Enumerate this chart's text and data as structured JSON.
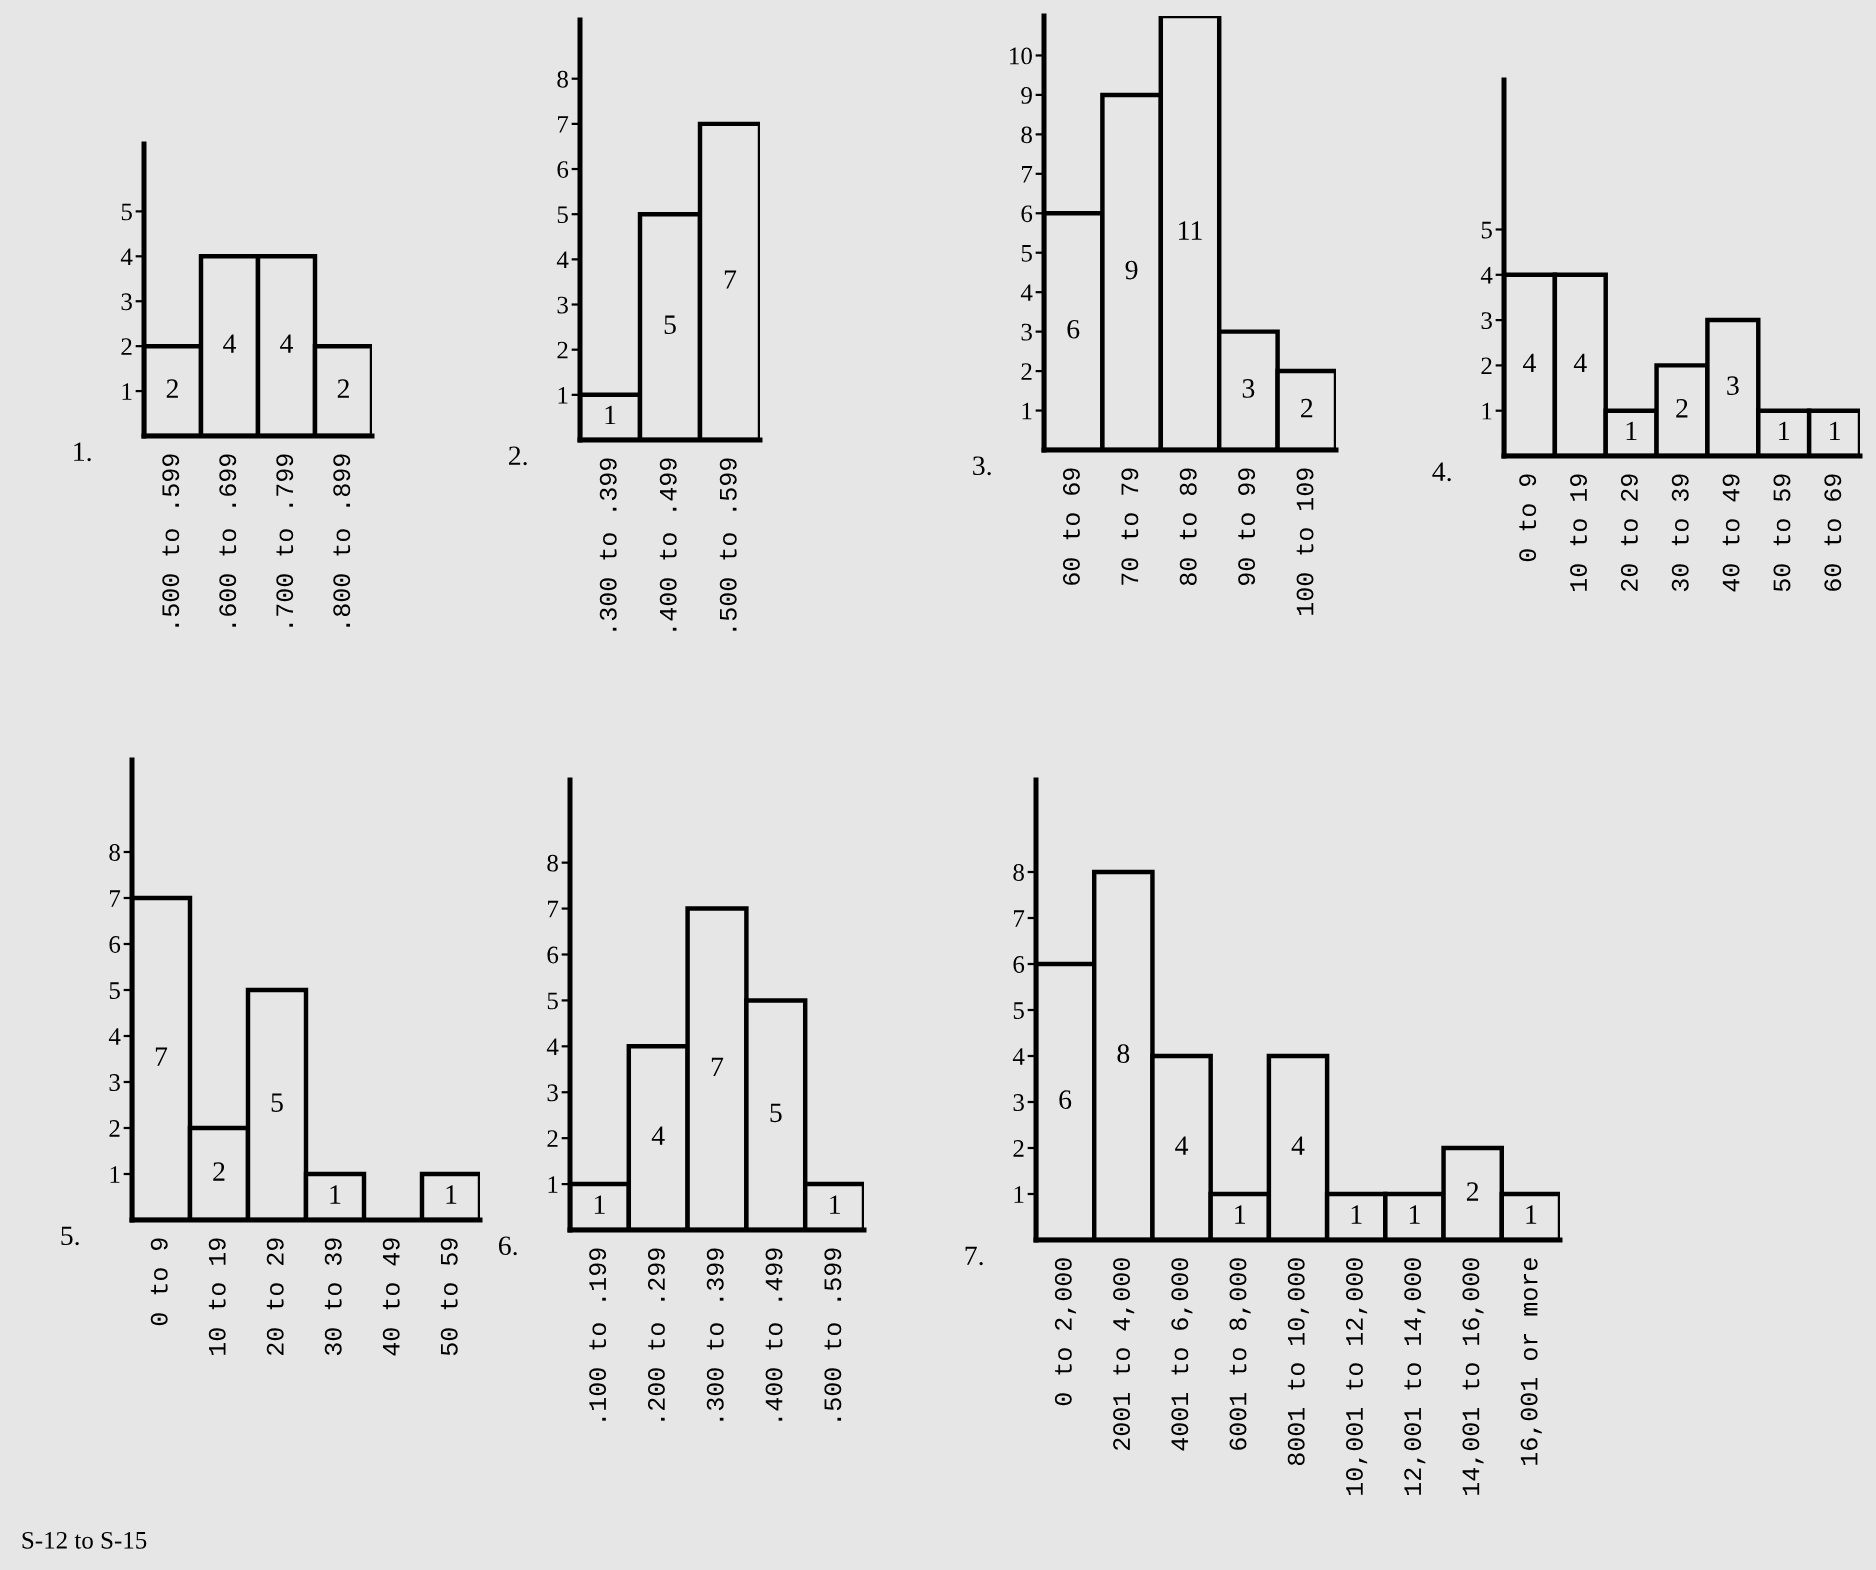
{
  "chart_data": [
    {
      "type": "bar",
      "title": "1.",
      "categories": [
        ".500 to .599",
        ".600 to .699",
        ".700 to .799",
        ".800 to .899"
      ],
      "values": [
        2,
        4,
        4,
        2
      ],
      "color": "#e6e6e6",
      "ylim": [
        0,
        6.5
      ],
      "yticks": [
        1,
        2,
        3,
        4,
        5
      ],
      "data_labels": true,
      "grid": false
    },
    {
      "type": "bar",
      "title": "2.",
      "categories": [
        ".300 to .399",
        ".400 to .499",
        ".500 to .599"
      ],
      "values": [
        1,
        5,
        7
      ],
      "color": "#e6e6e6",
      "ylim": [
        0,
        9.3
      ],
      "yticks": [
        1,
        2,
        3,
        4,
        5,
        6,
        7,
        8
      ],
      "data_labels": true,
      "grid": false
    },
    {
      "type": "bar",
      "title": "3.",
      "categories": [
        "60 to 69",
        "70 to 79",
        "80 to 89",
        "90 to 99",
        "100 to 109"
      ],
      "values": [
        6,
        9,
        11,
        3,
        2
      ],
      "color": "#e6e6e6",
      "ylim": [
        0,
        11
      ],
      "yticks": [
        1,
        2,
        3,
        4,
        5,
        6,
        7,
        8,
        9,
        10
      ],
      "data_labels": true,
      "grid": false
    },
    {
      "type": "bar",
      "title": "4.",
      "categories": [
        "0 to 9",
        "10 to 19",
        "20 to 29",
        "30 to 39",
        "40 to 49",
        "50 to 59",
        "60 to 69"
      ],
      "values": [
        4,
        4,
        1,
        2,
        3,
        1,
        1
      ],
      "color": "#e6e6e6",
      "ylim": [
        0,
        8.3
      ],
      "yticks": [
        1,
        2,
        3,
        4,
        5
      ],
      "data_labels": true,
      "grid": false
    },
    {
      "type": "bar",
      "title": "5.",
      "categories": [
        "0 to 9",
        "10 to 19",
        "20 to 29",
        "30 to 39",
        "40 to 49",
        "50 to 59"
      ],
      "values": [
        7,
        2,
        5,
        1,
        0,
        1
      ],
      "value_labels": [
        "7",
        "2",
        "5",
        "1",
        null,
        "1"
      ],
      "color": "#e6e6e6",
      "ylim": [
        0,
        10
      ],
      "yticks": [
        1,
        2,
        3,
        4,
        5,
        6,
        7,
        8
      ],
      "grid": false,
      "annotations": [
        "S-12 to S-15"
      ]
    },
    {
      "type": "bar",
      "title": "6.",
      "categories": [
        ".100 to .199",
        ".200 to .299",
        ".300 to .399",
        ".400 to .499",
        ".500 to .599"
      ],
      "values": [
        1,
        4,
        7,
        5,
        1
      ],
      "color": "#e6e6e6",
      "ylim": [
        0,
        9.8
      ],
      "yticks": [
        1,
        2,
        3,
        4,
        5,
        6,
        7,
        8
      ],
      "data_labels": true,
      "grid": false
    },
    {
      "type": "bar",
      "title": "7.",
      "categories": [
        "0 to 2,000",
        "2001 to 4,000",
        "4001 to 6,000",
        "6001 to 8,000",
        "8001 to 10,000",
        "10,001 to 12,000",
        "12,001 to 14,000",
        "14,001 to 16,000",
        "16,001 or more"
      ],
      "values": [
        6,
        8,
        4,
        1,
        4,
        1,
        1,
        2,
        1
      ],
      "color": "#e6e6e6",
      "ylim": [
        0,
        10
      ],
      "yticks": [
        1,
        2,
        3,
        4,
        5,
        6,
        7,
        8
      ],
      "data_labels": true,
      "grid": false
    }
  ]
}
